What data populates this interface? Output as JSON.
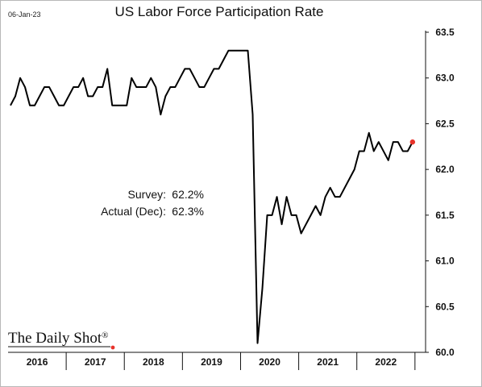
{
  "chart_data": {
    "type": "line",
    "title": "US Labor Force Participation Rate",
    "date_stamp": "06-Jan-23",
    "xlabel": "",
    "ylabel": "",
    "ylim": [
      60.0,
      63.5
    ],
    "y_ticks": [
      "63.5",
      "63.0",
      "62.5",
      "62.0",
      "61.5",
      "61.0",
      "60.5",
      "60.0"
    ],
    "x_tick_labels": [
      "2016",
      "2017",
      "2018",
      "2019",
      "2020",
      "2021",
      "2022"
    ],
    "grid": false,
    "y_axis_side": "right",
    "series": [
      {
        "color": "#000000",
        "x": [
          "2016-01",
          "2016-02",
          "2016-03",
          "2016-04",
          "2016-05",
          "2016-06",
          "2016-07",
          "2016-08",
          "2016-09",
          "2016-10",
          "2016-11",
          "2016-12",
          "2017-01",
          "2017-02",
          "2017-03",
          "2017-04",
          "2017-05",
          "2017-06",
          "2017-07",
          "2017-08",
          "2017-09",
          "2017-10",
          "2017-11",
          "2017-12",
          "2018-01",
          "2018-02",
          "2018-03",
          "2018-04",
          "2018-05",
          "2018-06",
          "2018-07",
          "2018-08",
          "2018-09",
          "2018-10",
          "2018-11",
          "2018-12",
          "2019-01",
          "2019-02",
          "2019-03",
          "2019-04",
          "2019-05",
          "2019-06",
          "2019-07",
          "2019-08",
          "2019-09",
          "2019-10",
          "2019-11",
          "2019-12",
          "2020-01",
          "2020-02",
          "2020-03",
          "2020-04",
          "2020-05",
          "2020-06",
          "2020-07",
          "2020-08",
          "2020-09",
          "2020-10",
          "2020-11",
          "2020-12",
          "2021-01",
          "2021-02",
          "2021-03",
          "2021-04",
          "2021-05",
          "2021-06",
          "2021-07",
          "2021-08",
          "2021-09",
          "2021-10",
          "2021-11",
          "2021-12",
          "2022-01",
          "2022-02",
          "2022-03",
          "2022-04",
          "2022-05",
          "2022-06",
          "2022-07",
          "2022-08",
          "2022-09",
          "2022-10",
          "2022-11",
          "2022-12"
        ],
        "values": [
          62.7,
          62.8,
          63.0,
          62.9,
          62.7,
          62.7,
          62.8,
          62.9,
          62.9,
          62.8,
          62.7,
          62.7,
          62.8,
          62.9,
          62.9,
          63.0,
          62.8,
          62.8,
          62.9,
          62.9,
          63.1,
          62.7,
          62.7,
          62.7,
          62.7,
          63.0,
          62.9,
          62.9,
          62.9,
          63.0,
          62.9,
          62.6,
          62.8,
          62.9,
          62.9,
          63.0,
          63.1,
          63.1,
          63.0,
          62.9,
          62.9,
          63.0,
          63.1,
          63.1,
          63.2,
          63.3,
          63.3,
          63.3,
          63.3,
          63.3,
          62.6,
          60.1,
          60.7,
          61.5,
          61.5,
          61.7,
          61.4,
          61.7,
          61.5,
          61.5,
          61.3,
          61.4,
          61.5,
          61.6,
          61.5,
          61.7,
          61.8,
          61.7,
          61.7,
          61.8,
          61.9,
          62.0,
          62.2,
          62.2,
          62.4,
          62.2,
          62.3,
          62.2,
          62.1,
          62.3,
          62.3,
          62.2,
          62.2,
          62.3
        ]
      }
    ],
    "highlight_point": {
      "x": "2022-12",
      "y": 62.3,
      "color": "#e8322a"
    },
    "annotations": [
      {
        "label": "Survey:",
        "value": "62.2%"
      },
      {
        "label": "Actual (Dec):",
        "value": "62.3%"
      }
    ]
  },
  "brand": {
    "logo_text": "The Daily Shot",
    "registered_mark": "®",
    "dot_color": "#e8322a"
  }
}
